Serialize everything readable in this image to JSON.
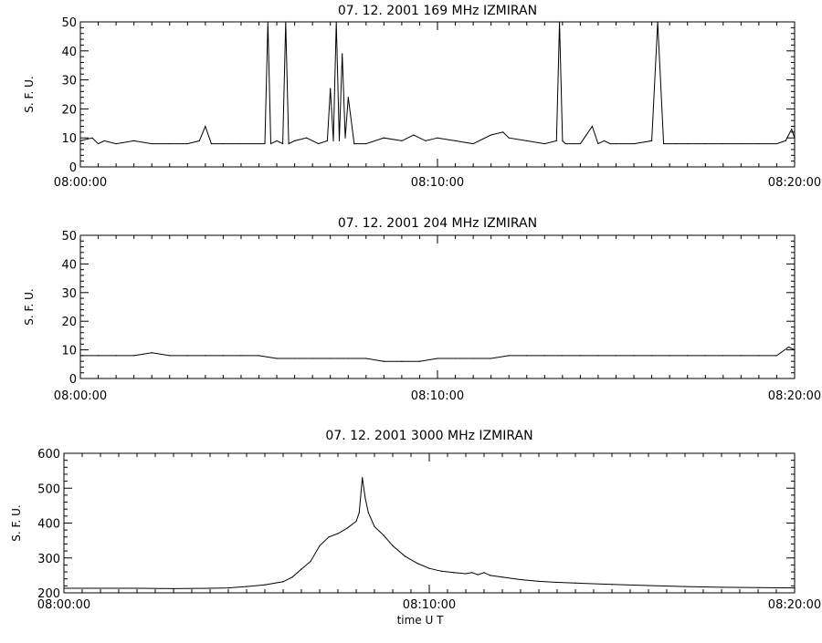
{
  "chart_data": [
    {
      "type": "line",
      "title": "07.  12.  2001    169  MHz    IZMIRAN",
      "ylabel": "S.  F.  U.",
      "xlabel": "",
      "xlim": [
        "08:00:00",
        "08:20:00"
      ],
      "ylim": [
        0,
        50
      ],
      "yticks": [
        0,
        10,
        20,
        30,
        40,
        50
      ],
      "xticks": [
        "08:00:00",
        "08:10:00",
        "08:20:00"
      ],
      "grid": false,
      "series": [
        {
          "x": [
            "08:00:00",
            "08:00:20",
            "08:00:30",
            "08:00:40",
            "08:01:00",
            "08:01:30",
            "08:02:00",
            "08:02:30",
            "08:03:00",
            "08:03:20",
            "08:03:30",
            "08:03:40",
            "08:04:00",
            "08:04:30",
            "08:04:50",
            "08:05:00",
            "08:05:10",
            "08:05:15",
            "08:05:20",
            "08:05:30",
            "08:05:40",
            "08:05:45",
            "08:05:50",
            "08:06:00",
            "08:06:20",
            "08:06:40",
            "08:06:55",
            "08:07:00",
            "08:07:05",
            "08:07:10",
            "08:07:15",
            "08:07:20",
            "08:07:25",
            "08:07:30",
            "08:07:40",
            "08:07:50",
            "08:08:00",
            "08:08:30",
            "08:09:00",
            "08:09:20",
            "08:09:40",
            "08:10:00",
            "08:10:30",
            "08:11:00",
            "08:11:30",
            "08:11:50",
            "08:12:00",
            "08:12:30",
            "08:13:00",
            "08:13:20",
            "08:13:25",
            "08:13:30",
            "08:13:35",
            "08:13:50",
            "08:14:00",
            "08:14:20",
            "08:14:30",
            "08:14:40",
            "08:14:50",
            "08:15:00",
            "08:15:30",
            "08:16:00",
            "08:16:10",
            "08:16:20",
            "08:16:40",
            "08:17:00",
            "08:17:30",
            "08:18:00",
            "08:18:30",
            "08:19:00",
            "08:19:30",
            "08:19:45",
            "08:19:55",
            "08:20:00"
          ],
          "values": [
            9,
            10,
            8,
            9,
            8,
            9,
            8,
            8,
            8,
            9,
            14,
            8,
            8,
            8,
            8,
            8,
            8,
            50,
            8,
            9,
            8,
            50,
            8,
            9,
            10,
            8,
            9,
            27,
            9,
            50,
            9,
            39,
            10,
            24,
            8,
            8,
            8,
            10,
            9,
            11,
            9,
            10,
            9,
            8,
            11,
            12,
            10,
            9,
            8,
            9,
            50,
            9,
            8,
            8,
            8,
            14,
            8,
            9,
            8,
            8,
            8,
            9,
            50,
            8,
            8,
            8,
            8,
            8,
            8,
            8,
            8,
            9,
            13,
            10
          ]
        }
      ]
    },
    {
      "type": "line",
      "title": "07.  12.  2001    204  MHz    IZMIRAN",
      "ylabel": "S.  F.  U.",
      "xlabel": "",
      "xlim": [
        "08:00:00",
        "08:20:00"
      ],
      "ylim": [
        0,
        50
      ],
      "yticks": [
        0,
        10,
        20,
        30,
        40,
        50
      ],
      "xticks": [
        "08:00:00",
        "08:10:00",
        "08:20:00"
      ],
      "grid": false,
      "series": [
        {
          "x": [
            "08:00:00",
            "08:00:30",
            "08:01:00",
            "08:01:30",
            "08:02:00",
            "08:02:30",
            "08:03:00",
            "08:03:30",
            "08:04:00",
            "08:04:30",
            "08:05:00",
            "08:05:30",
            "08:06:00",
            "08:06:30",
            "08:07:00",
            "08:07:30",
            "08:08:00",
            "08:08:30",
            "08:09:00",
            "08:09:30",
            "08:10:00",
            "08:10:30",
            "08:11:00",
            "08:11:30",
            "08:12:00",
            "08:12:30",
            "08:13:00",
            "08:13:30",
            "08:14:00",
            "08:14:30",
            "08:15:00",
            "08:15:30",
            "08:16:00",
            "08:16:30",
            "08:17:00",
            "08:17:30",
            "08:18:00",
            "08:18:30",
            "08:19:00",
            "08:19:30",
            "08:19:50",
            "08:20:00"
          ],
          "values": [
            8,
            8,
            8,
            8,
            9,
            8,
            8,
            8,
            8,
            8,
            8,
            7,
            7,
            7,
            7,
            7,
            7,
            6,
            6,
            6,
            7,
            7,
            7,
            7,
            8,
            8,
            8,
            8,
            8,
            8,
            8,
            8,
            8,
            8,
            8,
            8,
            8,
            8,
            8,
            8,
            11,
            10
          ]
        }
      ]
    },
    {
      "type": "line",
      "title": "07.  12.  2001     3000  MHz    IZMIRAN",
      "ylabel": "S.  F.  U.",
      "xlabel": "time   U  T",
      "xlim": [
        "08:00:00",
        "08:20:00"
      ],
      "ylim": [
        200,
        600
      ],
      "yticks": [
        200,
        300,
        400,
        500,
        600
      ],
      "xticks": [
        "08:00:00",
        "08:10:00",
        "08:20:00"
      ],
      "grid": false,
      "series": [
        {
          "x": [
            "08:00:00",
            "08:01:00",
            "08:02:00",
            "08:03:00",
            "08:04:00",
            "08:04:30",
            "08:05:00",
            "08:05:30",
            "08:06:00",
            "08:06:15",
            "08:06:30",
            "08:06:45",
            "08:07:00",
            "08:07:15",
            "08:07:30",
            "08:07:45",
            "08:08:00",
            "08:08:05",
            "08:08:10",
            "08:08:15",
            "08:08:20",
            "08:08:30",
            "08:08:45",
            "08:09:00",
            "08:09:20",
            "08:09:40",
            "08:10:00",
            "08:10:20",
            "08:10:40",
            "08:11:00",
            "08:11:10",
            "08:11:20",
            "08:11:30",
            "08:11:40",
            "08:12:00",
            "08:12:30",
            "08:13:00",
            "08:13:30",
            "08:14:00",
            "08:15:00",
            "08:16:00",
            "08:17:00",
            "08:18:00",
            "08:19:00",
            "08:20:00"
          ],
          "values": [
            213,
            213,
            213,
            212,
            213,
            214,
            218,
            223,
            232,
            245,
            268,
            290,
            335,
            360,
            370,
            385,
            405,
            430,
            530,
            470,
            430,
            390,
            365,
            335,
            305,
            285,
            270,
            262,
            258,
            255,
            258,
            252,
            258,
            250,
            245,
            238,
            233,
            230,
            228,
            224,
            221,
            218,
            216,
            215,
            214
          ]
        }
      ]
    }
  ]
}
